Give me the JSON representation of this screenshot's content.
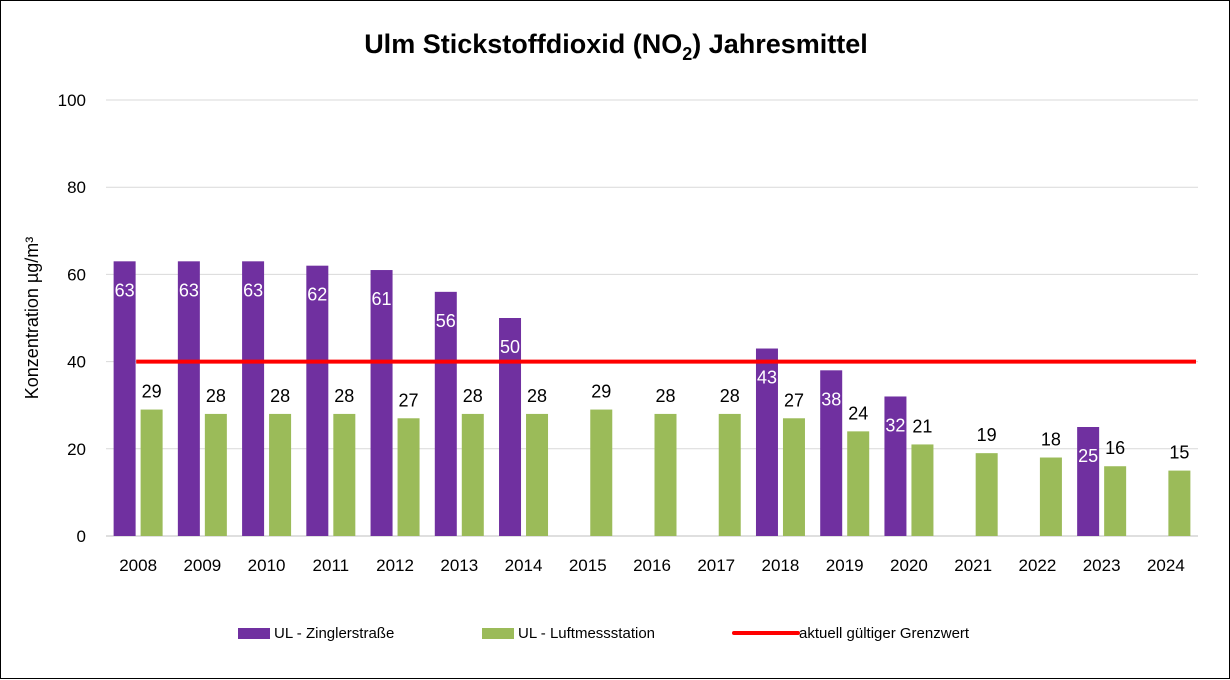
{
  "chart_data": {
    "type": "bar",
    "title": "Ulm Stickstoffdioxid (NO2) Jahresmittel",
    "title_parts": {
      "main": "Ulm Stickstoffdioxid (NO",
      "sub": "2",
      "end": ") Jahresmittel"
    },
    "ylabel": "Konzentration µg/m³",
    "xlabel": "",
    "ylim": [
      0,
      100
    ],
    "yticks": [
      0,
      20,
      40,
      60,
      80,
      100
    ],
    "grid": true,
    "legend_position": "bottom",
    "categories": [
      "2008",
      "2009",
      "2010",
      "2011",
      "2012",
      "2013",
      "2014",
      "2015",
      "2016",
      "2017",
      "2018",
      "2019",
      "2020",
      "2021",
      "2022",
      "2023",
      "2024"
    ],
    "series": [
      {
        "name": "UL - Zinglerstraße",
        "color": "#7030A0",
        "values": [
          63,
          63,
          63,
          62,
          61,
          56,
          50,
          null,
          null,
          null,
          43,
          38,
          32,
          null,
          null,
          25,
          null
        ]
      },
      {
        "name": "UL - Luftmessstation",
        "color": "#9BBB59",
        "values": [
          29,
          28,
          28,
          28,
          27,
          28,
          28,
          29,
          28,
          28,
          27,
          24,
          21,
          19,
          18,
          16,
          15
        ]
      }
    ],
    "reference_line": {
      "name": "aktuell gültiger Grenzwert",
      "value": 40,
      "color": "#FF0000"
    }
  }
}
